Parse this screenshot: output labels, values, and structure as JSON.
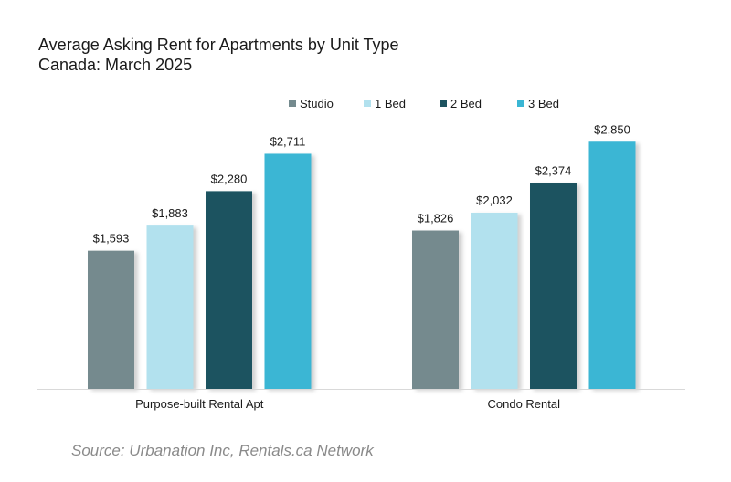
{
  "title_line1": "Average Asking Rent for Apartments by Unit Type",
  "title_line2": "Canada: March 2025",
  "source": "Source: Urbanation Inc, Rentals.ca Network",
  "chart_data": {
    "type": "bar",
    "categories": [
      "Purpose-built Rental Apt",
      "Condo Rental"
    ],
    "series": [
      {
        "name": "Studio",
        "color": "#748a8e",
        "values": [
          1593,
          1826
        ],
        "labels": [
          "$1,593",
          "$1,826"
        ]
      },
      {
        "name": "1 Bed",
        "color": "#b2e1ee",
        "values": [
          1883,
          2032
        ],
        "labels": [
          "$1,883",
          "$2,032"
        ]
      },
      {
        "name": "2 Bed",
        "color": "#1d5360",
        "values": [
          2280,
          2374
        ],
        "labels": [
          "$2,280",
          "$2,374"
        ]
      },
      {
        "name": "3 Bed",
        "color": "#3ab6d4",
        "values": [
          2711,
          2850
        ],
        "labels": [
          "$2,711",
          "$2,850"
        ]
      }
    ],
    "ylim": [
      0,
      3200
    ],
    "grid": false,
    "legend": "top"
  }
}
